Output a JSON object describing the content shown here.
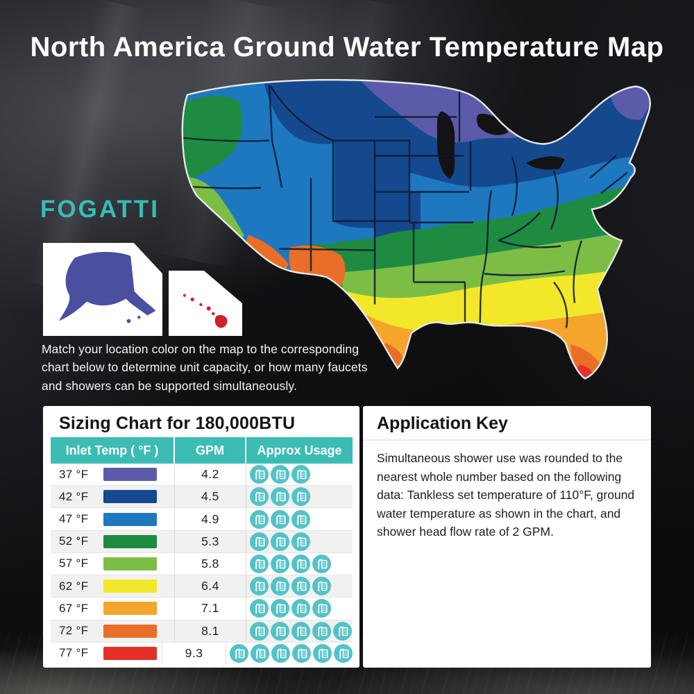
{
  "title": "North America Ground Water Temperature Map",
  "brand": {
    "name": "FOGATTI",
    "color": "#35bdb6"
  },
  "intro": "Match your location color on the map to the corresponding chart below to determine unit capacity, or how many faucets and showers can be supported simultaneously.",
  "map": {
    "region_colors": {
      "f37": "#5b5ba9",
      "f42": "#15498e",
      "f47": "#1e78c0",
      "f52": "#1f8b41",
      "f57": "#7cbe44",
      "f62": "#f2e829",
      "f67": "#f5a42c",
      "f72": "#e96e27",
      "f77": "#e43027"
    },
    "alaska_color": "#4a4fa0",
    "hawaii_color": "#cf2128"
  },
  "sizing_chart": {
    "title": "Sizing Chart for 180,000BTU",
    "header_color": "#3cbcb4",
    "shower_icon_color": "#54c2c6",
    "columns": [
      "Inlet Temp ( °F )",
      "GPM",
      "Approx Usage"
    ],
    "rows": [
      {
        "inlet_temp": "37 °F",
        "swatch_color": "#5b5ba9",
        "gpm": "4.2",
        "showers": 3
      },
      {
        "inlet_temp": "42 °F",
        "swatch_color": "#15498e",
        "gpm": "4.5",
        "showers": 3
      },
      {
        "inlet_temp": "47 °F",
        "swatch_color": "#1e78c0",
        "gpm": "4.9",
        "showers": 3
      },
      {
        "inlet_temp": "52 °F",
        "swatch_color": "#1f8b41",
        "gpm": "5.3",
        "showers": 3
      },
      {
        "inlet_temp": "57 °F",
        "swatch_color": "#7cbe44",
        "gpm": "5.8",
        "showers": 4
      },
      {
        "inlet_temp": "62 °F",
        "swatch_color": "#f2e829",
        "gpm": "6.4",
        "showers": 4
      },
      {
        "inlet_temp": "67 °F",
        "swatch_color": "#f5a42c",
        "gpm": "7.1",
        "showers": 4
      },
      {
        "inlet_temp": "72 °F",
        "swatch_color": "#e96e27",
        "gpm": "8.1",
        "showers": 5
      },
      {
        "inlet_temp": "77 °F",
        "swatch_color": "#e43027",
        "gpm": "9.3",
        "showers": 6
      }
    ]
  },
  "application_key": {
    "title": "Application Key",
    "body": "Simultaneous shower use was rounded to the nearest whole number based on the following data: Tankless set temperature of 110°F, ground water temperature as shown in the chart, and shower head flow rate of 2 GPM."
  }
}
